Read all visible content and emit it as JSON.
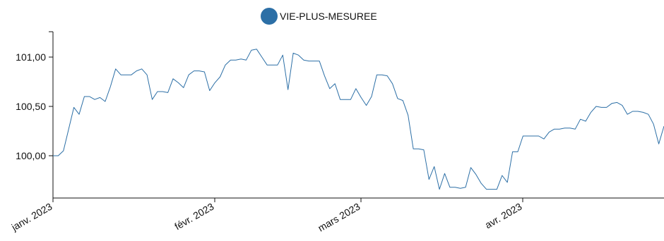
{
  "chart_data": {
    "type": "line",
    "legend": {
      "position": "top-center"
    },
    "series": [
      {
        "name": "VIE-PLUS-MESUREE",
        "color": "#2c6fa6",
        "points": [
          [
            "2023-01-01",
            100.0
          ],
          [
            "2023-01-02",
            100.0
          ],
          [
            "2023-01-03",
            100.05
          ],
          [
            "2023-01-04",
            100.27
          ],
          [
            "2023-01-05",
            100.49
          ],
          [
            "2023-01-06",
            100.42
          ],
          [
            "2023-01-07",
            100.6
          ],
          [
            "2023-01-08",
            100.6
          ],
          [
            "2023-01-09",
            100.57
          ],
          [
            "2023-01-10",
            100.59
          ],
          [
            "2023-01-11",
            100.55
          ],
          [
            "2023-01-12",
            100.7
          ],
          [
            "2023-01-13",
            100.88
          ],
          [
            "2023-01-14",
            100.82
          ],
          [
            "2023-01-15",
            100.82
          ],
          [
            "2023-01-16",
            100.82
          ],
          [
            "2023-01-17",
            100.86
          ],
          [
            "2023-01-18",
            100.88
          ],
          [
            "2023-01-19",
            100.82
          ],
          [
            "2023-01-20",
            100.57
          ],
          [
            "2023-01-21",
            100.65
          ],
          [
            "2023-01-22",
            100.65
          ],
          [
            "2023-01-23",
            100.64
          ],
          [
            "2023-01-24",
            100.78
          ],
          [
            "2023-01-25",
            100.74
          ],
          [
            "2023-01-26",
            100.69
          ],
          [
            "2023-01-27",
            100.82
          ],
          [
            "2023-01-28",
            100.86
          ],
          [
            "2023-01-29",
            100.86
          ],
          [
            "2023-01-30",
            100.85
          ],
          [
            "2023-01-31",
            100.66
          ],
          [
            "2023-02-01",
            100.74
          ],
          [
            "2023-02-02",
            100.8
          ],
          [
            "2023-02-03",
            100.92
          ],
          [
            "2023-02-04",
            100.97
          ],
          [
            "2023-02-05",
            100.97
          ],
          [
            "2023-02-06",
            100.98
          ],
          [
            "2023-02-07",
            100.97
          ],
          [
            "2023-02-08",
            101.07
          ],
          [
            "2023-02-09",
            101.08
          ],
          [
            "2023-02-10",
            101.0
          ],
          [
            "2023-02-11",
            100.92
          ],
          [
            "2023-02-12",
            100.92
          ],
          [
            "2023-02-13",
            100.92
          ],
          [
            "2023-02-14",
            101.02
          ],
          [
            "2023-02-15",
            100.67
          ],
          [
            "2023-02-16",
            101.04
          ],
          [
            "2023-02-17",
            101.02
          ],
          [
            "2023-02-18",
            100.97
          ],
          [
            "2023-02-19",
            100.96
          ],
          [
            "2023-02-20",
            100.96
          ],
          [
            "2023-02-21",
            100.96
          ],
          [
            "2023-02-22",
            100.81
          ],
          [
            "2023-02-23",
            100.68
          ],
          [
            "2023-02-24",
            100.73
          ],
          [
            "2023-02-25",
            100.57
          ],
          [
            "2023-02-26",
            100.57
          ],
          [
            "2023-02-27",
            100.57
          ],
          [
            "2023-02-28",
            100.68
          ],
          [
            "2023-03-01",
            100.59
          ],
          [
            "2023-03-02",
            100.51
          ],
          [
            "2023-03-03",
            100.6
          ],
          [
            "2023-03-04",
            100.82
          ],
          [
            "2023-03-05",
            100.82
          ],
          [
            "2023-03-06",
            100.81
          ],
          [
            "2023-03-07",
            100.73
          ],
          [
            "2023-03-08",
            100.58
          ],
          [
            "2023-03-09",
            100.56
          ],
          [
            "2023-03-10",
            100.41
          ],
          [
            "2023-03-11",
            100.07
          ],
          [
            "2023-03-12",
            100.07
          ],
          [
            "2023-03-13",
            100.06
          ],
          [
            "2023-03-14",
            99.76
          ],
          [
            "2023-03-15",
            99.89
          ],
          [
            "2023-03-16",
            99.66
          ],
          [
            "2023-03-17",
            99.82
          ],
          [
            "2023-03-18",
            99.68
          ],
          [
            "2023-03-19",
            99.68
          ],
          [
            "2023-03-20",
            99.67
          ],
          [
            "2023-03-21",
            99.68
          ],
          [
            "2023-03-22",
            99.88
          ],
          [
            "2023-03-23",
            99.81
          ],
          [
            "2023-03-24",
            99.72
          ],
          [
            "2023-03-25",
            99.66
          ],
          [
            "2023-03-26",
            99.66
          ],
          [
            "2023-03-27",
            99.66
          ],
          [
            "2023-03-28",
            99.8
          ],
          [
            "2023-03-29",
            99.73
          ],
          [
            "2023-03-30",
            100.04
          ],
          [
            "2023-03-31",
            100.04
          ],
          [
            "2023-04-01",
            100.2
          ],
          [
            "2023-04-02",
            100.2
          ],
          [
            "2023-04-03",
            100.2
          ],
          [
            "2023-04-04",
            100.2
          ],
          [
            "2023-04-05",
            100.17
          ],
          [
            "2023-04-06",
            100.24
          ],
          [
            "2023-04-07",
            100.27
          ],
          [
            "2023-04-08",
            100.27
          ],
          [
            "2023-04-09",
            100.28
          ],
          [
            "2023-04-10",
            100.28
          ],
          [
            "2023-04-11",
            100.27
          ],
          [
            "2023-04-12",
            100.37
          ],
          [
            "2023-04-13",
            100.35
          ],
          [
            "2023-04-14",
            100.44
          ],
          [
            "2023-04-15",
            100.5
          ],
          [
            "2023-04-16",
            100.49
          ],
          [
            "2023-04-17",
            100.49
          ],
          [
            "2023-04-18",
            100.53
          ],
          [
            "2023-04-19",
            100.54
          ],
          [
            "2023-04-20",
            100.51
          ],
          [
            "2023-04-21",
            100.42
          ],
          [
            "2023-04-22",
            100.45
          ],
          [
            "2023-04-23",
            100.45
          ],
          [
            "2023-04-24",
            100.44
          ],
          [
            "2023-04-25",
            100.42
          ],
          [
            "2023-04-26",
            100.32
          ],
          [
            "2023-04-27",
            100.12
          ],
          [
            "2023-04-28",
            100.3
          ]
        ]
      }
    ],
    "x_axis": {
      "type": "date",
      "range": [
        "2023-01-01",
        "2023-04-28"
      ],
      "ticks": [
        {
          "date": "2023-01-01",
          "label": "janv. 2023"
        },
        {
          "date": "2023-02-01",
          "label": "févr. 2023"
        },
        {
          "date": "2023-03-01",
          "label": "mars 2023"
        },
        {
          "date": "2023-04-01",
          "label": "avr. 2023"
        }
      ]
    },
    "y_axis": {
      "range": [
        99.8,
        101.25
      ],
      "ticks": [
        {
          "value": 100.0,
          "label": "100,00"
        },
        {
          "value": 100.5,
          "label": "100,50"
        },
        {
          "value": 101.0,
          "label": "101,00"
        }
      ]
    },
    "grid": false
  }
}
